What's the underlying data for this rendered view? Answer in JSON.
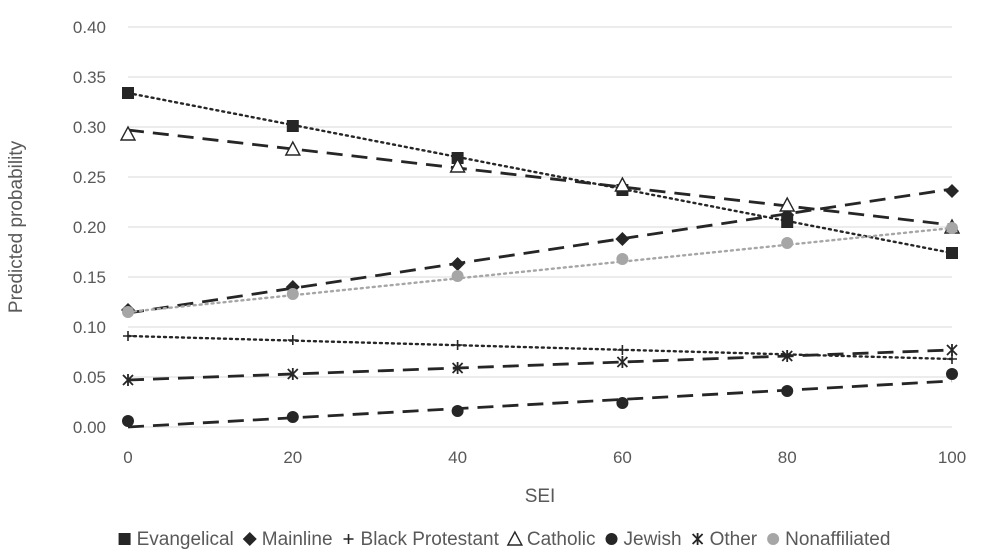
{
  "chart_data": {
    "type": "line",
    "xlabel": "SEI",
    "ylabel": "Predicted probability",
    "x": [
      0,
      20,
      40,
      60,
      80,
      100
    ],
    "xlim": [
      0,
      100
    ],
    "ylim": [
      0,
      0.4
    ],
    "x_ticks": [
      "0",
      "20",
      "40",
      "60",
      "80",
      "100"
    ],
    "y_ticks": [
      "0.00",
      "0.05",
      "0.10",
      "0.15",
      "0.20",
      "0.25",
      "0.30",
      "0.35",
      "0.40"
    ],
    "grid": "horizontal",
    "legend_position": "bottom",
    "series": [
      {
        "name": "Evangelical",
        "marker": "square",
        "line": "dotted",
        "color": "#262626",
        "values": [
          0.334,
          0.301,
          0.269,
          0.237,
          0.205,
          0.174
        ],
        "trend": [
          0.334,
          0.174
        ]
      },
      {
        "name": "Mainline",
        "marker": "diamond",
        "line": "dashed",
        "color": "#262626",
        "values": [
          0.117,
          0.14,
          0.163,
          0.188,
          0.212,
          0.236
        ],
        "trend": [
          0.114,
          0.238
        ]
      },
      {
        "name": "Black Protestant",
        "marker": "plus",
        "line": "dotted",
        "color": "#262626",
        "values": [
          0.091,
          0.087,
          0.082,
          0.077,
          0.072,
          0.068
        ],
        "trend": [
          0.091,
          0.068
        ]
      },
      {
        "name": "Catholic",
        "marker": "triangle",
        "line": "dashed",
        "color": "#262626",
        "values": [
          0.293,
          0.278,
          0.261,
          0.242,
          0.222,
          0.2
        ],
        "trend": [
          0.297,
          0.202
        ]
      },
      {
        "name": "Jewish",
        "marker": "circle",
        "line": "dashed",
        "color": "#262626",
        "values": [
          0.006,
          0.01,
          0.016,
          0.024,
          0.036,
          0.053
        ],
        "trend": [
          0.0,
          0.046
        ]
      },
      {
        "name": "Other",
        "marker": "star",
        "line": "dashed",
        "color": "#262626",
        "values": [
          0.047,
          0.053,
          0.059,
          0.065,
          0.071,
          0.077
        ],
        "trend": [
          0.047,
          0.077
        ]
      },
      {
        "name": "Nonaffiliated",
        "marker": "circle",
        "line": "dotted",
        "color": "#a6a6a6",
        "values": [
          0.115,
          0.133,
          0.151,
          0.168,
          0.184,
          0.199
        ],
        "trend": [
          0.115,
          0.199
        ]
      }
    ]
  }
}
